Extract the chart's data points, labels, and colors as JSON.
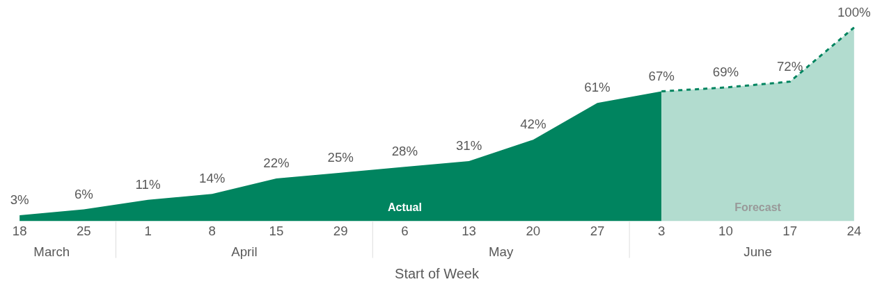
{
  "chart_data": {
    "type": "area",
    "xlabel": "Start of Week",
    "categories": [
      "18",
      "25",
      "1",
      "8",
      "15",
      "29",
      "6",
      "13",
      "20",
      "27",
      "3",
      "10",
      "17",
      "24"
    ],
    "series": [
      {
        "name": "Actual",
        "color": "#00845f",
        "values": [
          3,
          6,
          11,
          14,
          22,
          25,
          28,
          31,
          42,
          61,
          67,
          null,
          null,
          null
        ],
        "value_labels": [
          "3%",
          "6%",
          "11%",
          "14%",
          "22%",
          "25%",
          "28%",
          "31%",
          "42%",
          "61%",
          "67%",
          null,
          null,
          null
        ]
      },
      {
        "name": "Forecast",
        "color": "#b2dccf",
        "line_style": "dashed",
        "values": [
          null,
          null,
          null,
          null,
          null,
          null,
          null,
          null,
          null,
          null,
          67,
          69,
          72,
          100
        ],
        "value_labels": [
          null,
          null,
          null,
          null,
          null,
          null,
          null,
          null,
          null,
          null,
          null,
          "69%",
          "72%",
          "100%"
        ]
      }
    ],
    "annotations": [
      "March",
      "April",
      "May",
      "June"
    ],
    "grid": false,
    "legend": false
  }
}
